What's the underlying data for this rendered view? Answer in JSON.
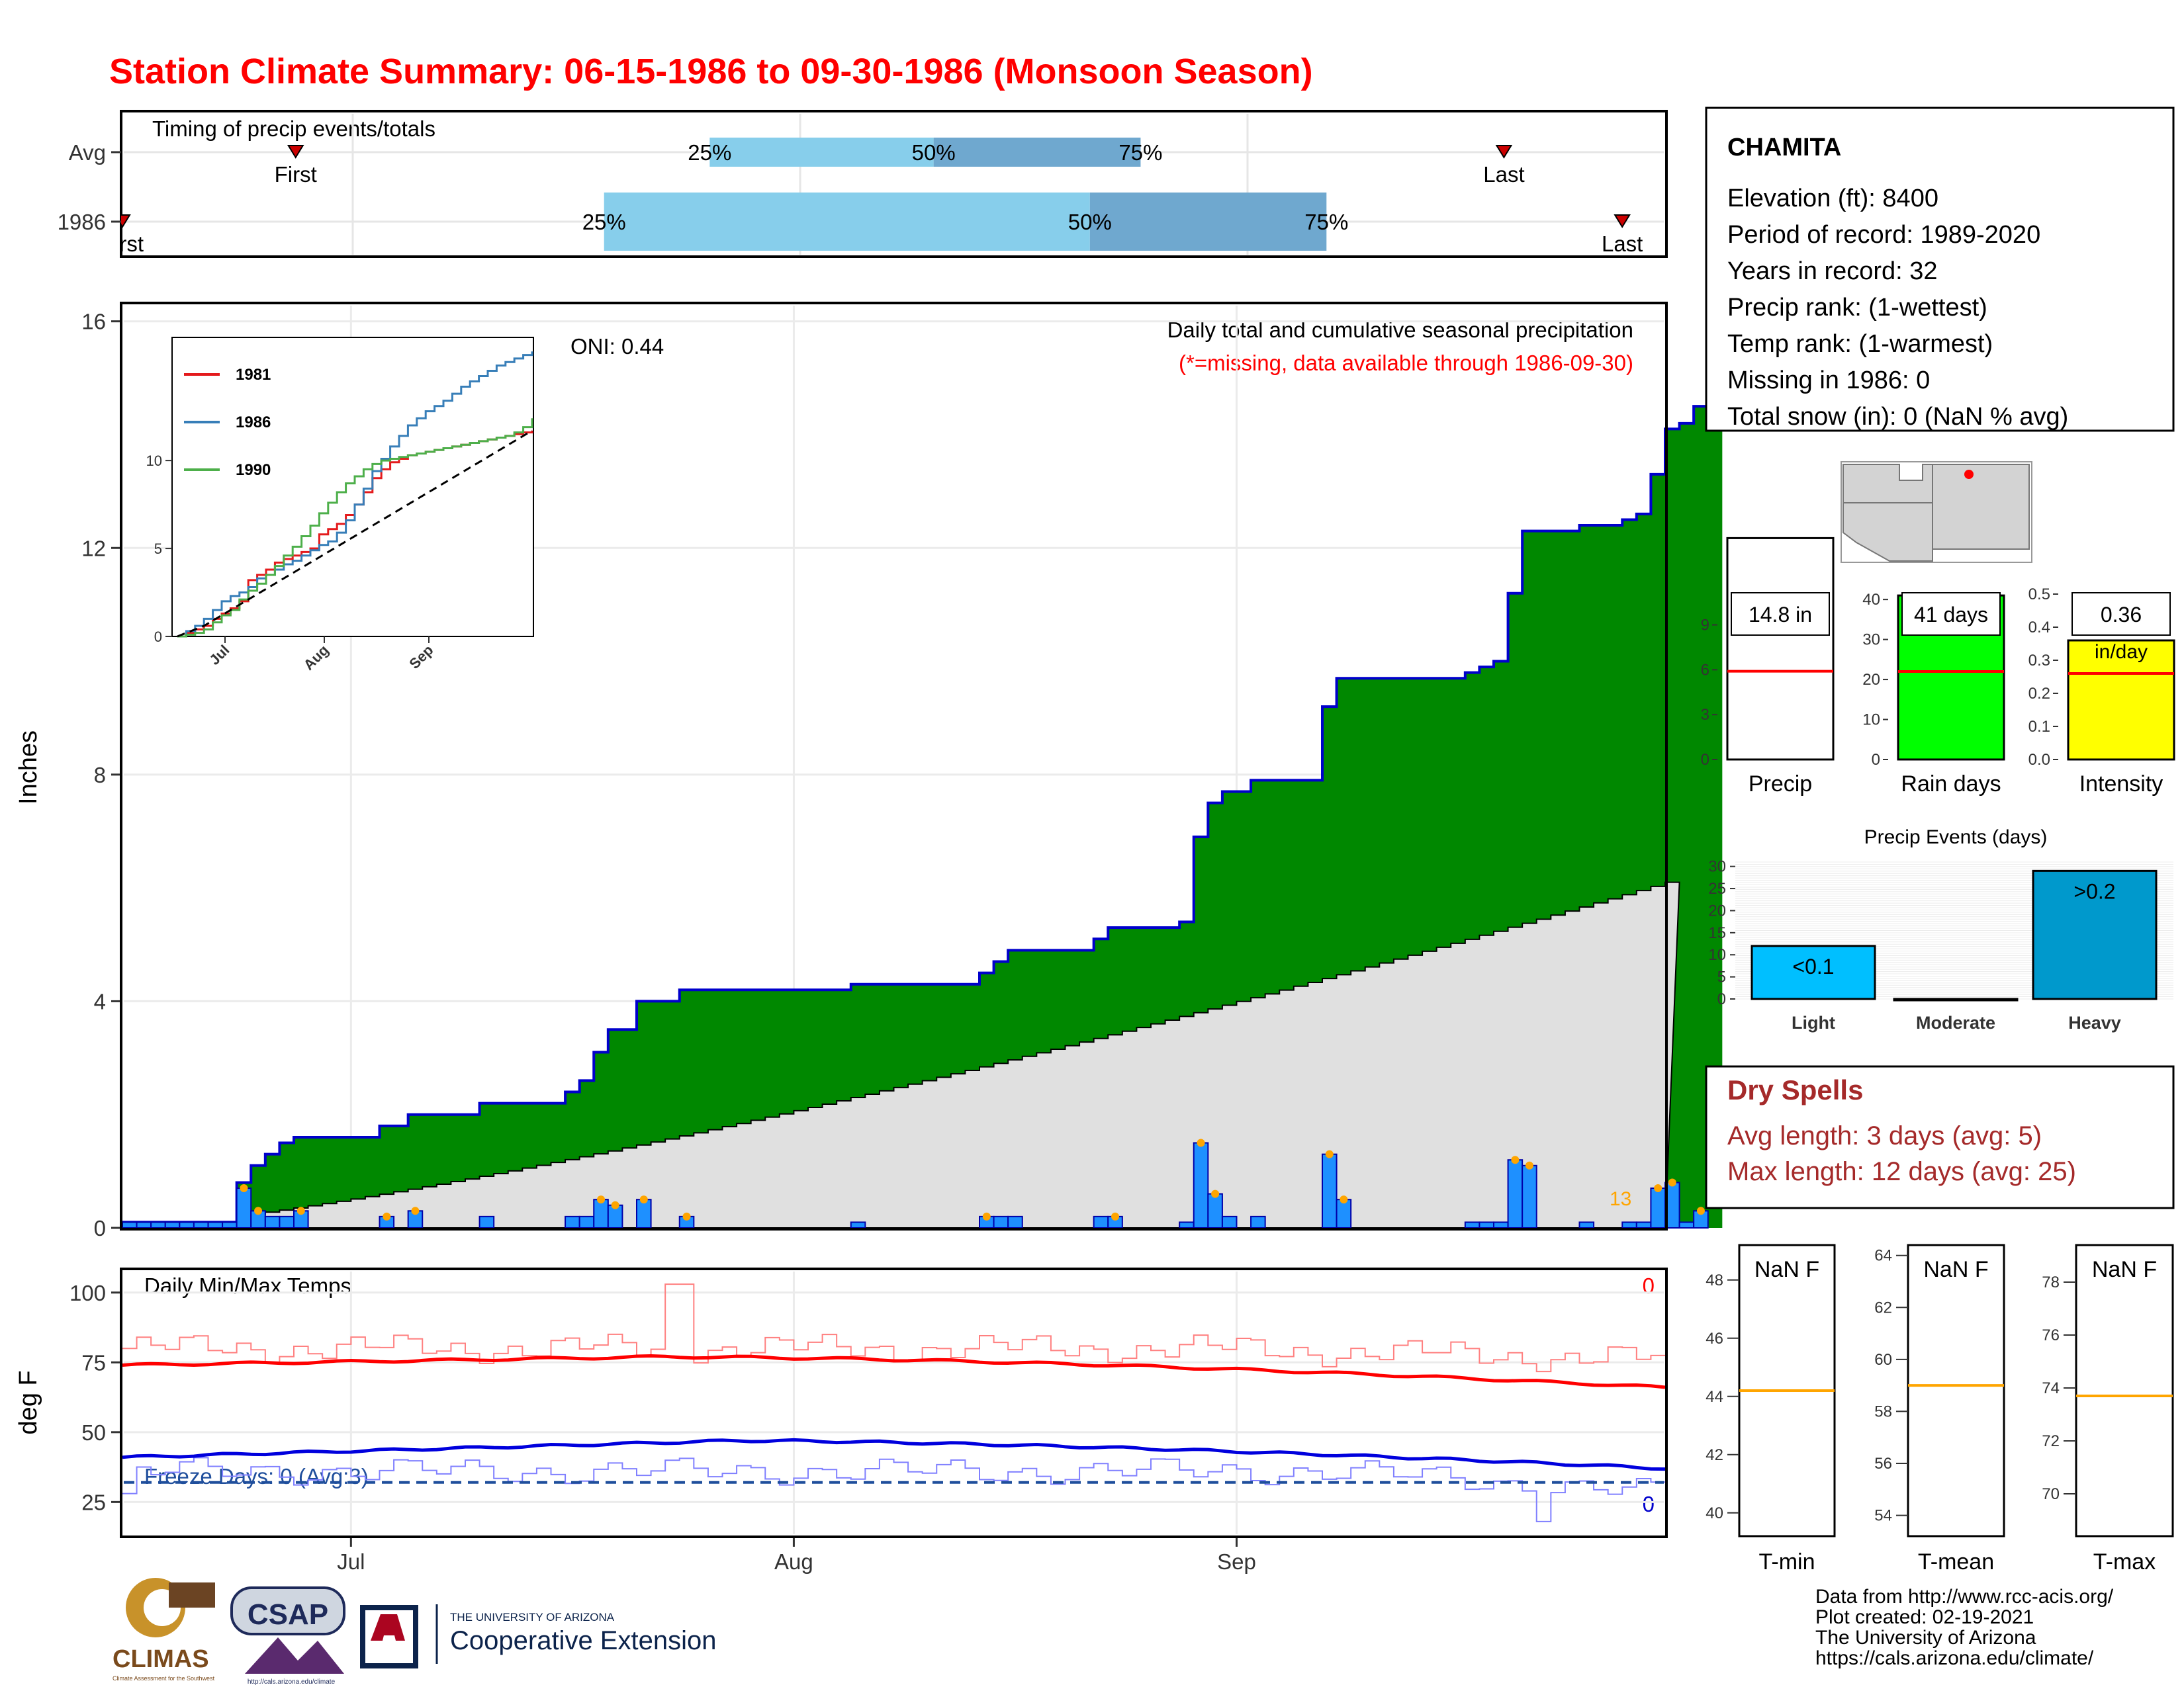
{
  "title": "Station Climate Summary: 06-15-1986 to 09-30-1986 (Monsoon Season)",
  "colors": {
    "title": "#ff0000",
    "cumulative_fill": "#008800",
    "cumulative_line": "#0000cc",
    "avg_fill": "#e0e0e0",
    "daily_bar": "#1e90ff",
    "light_blue": "#87ceeb",
    "mid_blue": "#6fa8cf",
    "dry_spell_text": "#a52a2a",
    "tmax": "#ff0000",
    "tmin": "#0000dd",
    "avg_line": "#ffa500"
  },
  "timing": {
    "label": "Timing of precip events/totals",
    "rows": [
      {
        "name": "Avg",
        "first_label": "First",
        "first_doy": 41,
        "last_label": "Last",
        "last_doy": 327,
        "p25_label": "25%",
        "p25": 139,
        "p50_label": "50%",
        "p50": 192,
        "p75_label": "75%",
        "p75": 241
      },
      {
        "name": "1986",
        "first_label": "First",
        "first_doy": 0,
        "last_label": "Last",
        "last_doy": 355,
        "p25_label": "25%",
        "p25": 114,
        "p50_label": "50%",
        "p50": 229,
        "p75_label": "75%",
        "p75": 285
      }
    ]
  },
  "precip_panel": {
    "ylabel": "Inches",
    "yticks": [
      0,
      4,
      8,
      12,
      16
    ],
    "note1": "Daily total and cumulative seasonal precipitation",
    "note2": "(*=missing, data available through 1986-09-30)",
    "oni": "ONI: 0.44",
    "last_day_label": "13"
  },
  "inset": {
    "yticks": [
      0,
      5,
      10
    ],
    "xticks": [
      "Jul",
      "Aug",
      "Sep"
    ],
    "legend": [
      {
        "name": "1981",
        "color": "#e41a1c"
      },
      {
        "name": "1986",
        "color": "#377eb8"
      },
      {
        "name": "1990",
        "color": "#4daf4a"
      }
    ]
  },
  "temp_panel": {
    "ylabel": "deg F",
    "yticks": [
      25,
      50,
      75,
      100
    ],
    "label": "Daily Min/Max Temps",
    "freeze": "Freeze Days: 0 (Avg:3)",
    "freeze_line": 32,
    "tmax_count": "0",
    "tmin_count": "0"
  },
  "xaxis": {
    "ticks": [
      {
        "label": "Jul",
        "day": 16
      },
      {
        "label": "Aug",
        "day": 47
      },
      {
        "label": "Sep",
        "day": 78
      }
    ],
    "days": 108
  },
  "station": {
    "name": "CHAMITA",
    "lines": [
      "Elevation (ft): 8400",
      "Period of record: 1989-2020",
      "Years in record: 32",
      "Precip rank:  (1-wettest)",
      "Temp rank:  (1-warmest)",
      "Missing in 1986: 0",
      "Total snow (in): 0 (NaN % avg)"
    ]
  },
  "mini_bars": [
    {
      "name": "Precip",
      "value": 14.8,
      "avg": 5.9,
      "ymax": 11.5,
      "yticks": [
        0,
        3,
        6,
        9
      ],
      "box_label": "14.8 in",
      "sub_label": "",
      "fill": "#ffffff"
    },
    {
      "name": "Rain days",
      "value": 41,
      "avg": 22,
      "ymax": 43,
      "yticks": [
        0,
        10,
        20,
        30,
        40
      ],
      "box_label": "41 days",
      "sub_label": "",
      "fill": "#00ff00"
    },
    {
      "name": "Intensity",
      "value": 0.36,
      "avg": 0.26,
      "ymax": 0.52,
      "yticks": [
        "0.0",
        "0.1",
        "0.2",
        "0.3",
        "0.4",
        "0.5"
      ],
      "box_label": "0.36",
      "sub_label": "in/day",
      "fill": "#ffff00"
    }
  ],
  "precip_events": {
    "title": "Precip Events (days)",
    "yticks": [
      0,
      5,
      10,
      15,
      20,
      25,
      30
    ],
    "categories": [
      "Light",
      "Moderate",
      "Heavy"
    ],
    "values": [
      12,
      0,
      29
    ],
    "labels": [
      "<0.1",
      "",
      ">0.2"
    ],
    "fills": [
      "#00bfff",
      "#1e90ff",
      "#0099cc"
    ]
  },
  "dry_spells": {
    "title": "Dry Spells",
    "avg": "Avg length: 3 days (avg: 5)",
    "max": "Max length: 12 days (avg: 25)"
  },
  "temp_boxes": [
    {
      "name": "T-min",
      "label": "NaN F",
      "yticks": [
        40,
        42,
        44,
        46,
        48
      ],
      "ymin": 39.2,
      "ymax": 49.2,
      "avg": 44.2
    },
    {
      "name": "T-mean",
      "label": "NaN F",
      "yticks": [
        54,
        56,
        58,
        60,
        62,
        64
      ],
      "ymin": 53.2,
      "ymax": 64.4,
      "avg": 59.0
    },
    {
      "name": "T-max",
      "label": "NaN F",
      "yticks": [
        70,
        72,
        74,
        76,
        78
      ],
      "ymin": 68.4,
      "ymax": 79.4,
      "avg": 73.7
    }
  ],
  "footer": {
    "lines": [
      "Data from http://www.rcc-acis.org/",
      "Plot created: 02-19-2021",
      "The University of Arizona",
      "https://cals.arizona.edu/climate/"
    ],
    "logo1": "CLIMAS",
    "logo1_sub": "Climate Assessment for the Southwest",
    "logo2": "CSAP",
    "logo2_sub": "http://cals.arizona.edu/climate",
    "logo3_top": "THE UNIVERSITY OF ARIZONA",
    "logo3_bottom": "Cooperative Extension"
  },
  "chart_data": {
    "type": "area",
    "title": "Station Climate Summary: 06-15-1986 to 09-30-1986 (Monsoon Season)",
    "xlabel": "",
    "ylabel": "Inches",
    "ylim": [
      0,
      16.3
    ],
    "x_start": "06-15-1986",
    "x_end": "09-30-1986",
    "daily_precip": [
      0.1,
      0.1,
      0.1,
      0.1,
      0.1,
      0.1,
      0.1,
      0.1,
      0.7,
      0.3,
      0.2,
      0.2,
      0.3,
      0,
      0,
      0,
      0,
      0,
      0.2,
      0,
      0.3,
      0,
      0,
      0,
      0,
      0.2,
      0,
      0,
      0,
      0,
      0,
      0.2,
      0.2,
      0.5,
      0.4,
      0,
      0.5,
      0,
      0,
      0.2,
      0,
      0,
      0,
      0,
      0,
      0,
      0,
      0,
      0,
      0,
      0,
      0.1,
      0,
      0,
      0,
      0,
      0,
      0,
      0,
      0,
      0.2,
      0.2,
      0.2,
      0,
      0,
      0,
      0,
      0,
      0.2,
      0.2,
      0,
      0,
      0,
      0,
      0.1,
      1.5,
      0.6,
      0.2,
      0,
      0.2,
      0,
      0,
      0,
      0,
      1.3,
      0.5,
      0,
      0,
      0,
      0,
      0,
      0,
      0,
      0,
      0.1,
      0.1,
      0.1,
      1.2,
      1.1,
      0,
      0,
      0,
      0.1,
      0,
      0,
      0.1,
      0.1,
      0.7,
      0.8,
      0.1,
      0.3
    ],
    "cumulative": [
      0.1,
      0.1,
      0.1,
      0.1,
      0.1,
      0.1,
      0.1,
      0.1,
      0.8,
      1.1,
      1.3,
      1.5,
      1.6,
      1.6,
      1.6,
      1.6,
      1.6,
      1.6,
      1.8,
      1.8,
      2.0,
      2.0,
      2.0,
      2.0,
      2.0,
      2.2,
      2.2,
      2.2,
      2.2,
      2.2,
      2.2,
      2.4,
      2.6,
      3.1,
      3.5,
      3.5,
      4.0,
      4.0,
      4.0,
      4.2,
      4.2,
      4.2,
      4.2,
      4.2,
      4.2,
      4.2,
      4.2,
      4.2,
      4.2,
      4.2,
      4.2,
      4.3,
      4.3,
      4.3,
      4.3,
      4.3,
      4.3,
      4.3,
      4.3,
      4.3,
      4.5,
      4.7,
      4.9,
      4.9,
      4.9,
      4.9,
      4.9,
      4.9,
      5.1,
      5.3,
      5.3,
      5.3,
      5.3,
      5.3,
      5.4,
      6.9,
      7.5,
      7.7,
      7.7,
      7.9,
      7.9,
      7.9,
      7.9,
      7.9,
      9.2,
      9.7,
      9.7,
      9.7,
      9.7,
      9.7,
      9.7,
      9.7,
      9.7,
      9.7,
      9.8,
      9.9,
      10.0,
      11.2,
      12.3,
      12.3,
      12.3,
      12.3,
      12.4,
      12.4,
      12.4,
      12.5,
      12.6,
      13.3,
      14.1,
      14.2,
      14.5,
      14.8
    ],
    "avg_cumulative_end": 6.1,
    "inset_series": [
      {
        "name": "1981",
        "values": [
          0,
          0.2,
          0.4,
          0.6,
          1.0,
          1.3,
          1.6,
          2.0,
          3.2,
          3.5,
          3.8,
          4.2,
          4.4,
          4.6,
          4.8,
          5.0,
          5.8,
          6.1,
          6.4,
          6.9,
          7.5,
          8.2,
          9.0,
          9.5,
          9.9,
          10.1,
          10.3,
          10.4,
          10.5,
          10.6,
          10.7,
          10.8,
          10.9,
          11.0,
          11.1,
          11.2,
          11.3,
          11.4,
          11.5,
          11.6,
          11.7
        ]
      },
      {
        "name": "1986",
        "values": [
          0,
          0.3,
          0.6,
          1.0,
          1.5,
          2.0,
          2.3,
          2.5,
          2.8,
          3.3,
          3.5,
          3.8,
          4.1,
          4.3,
          4.6,
          4.9,
          5.2,
          5.4,
          5.9,
          6.6,
          7.5,
          8.4,
          9.4,
          10.1,
          10.8,
          11.4,
          12.0,
          12.4,
          12.8,
          13.1,
          13.4,
          13.8,
          14.2,
          14.5,
          14.8,
          15.1,
          15.4,
          15.6,
          15.8,
          16.0,
          16.2
        ]
      },
      {
        "name": "1990",
        "values": [
          0,
          0.1,
          0.2,
          0.4,
          0.8,
          1.2,
          1.5,
          2.1,
          2.6,
          3.0,
          3.5,
          4.0,
          4.6,
          5.1,
          5.7,
          6.3,
          7.0,
          7.6,
          8.2,
          8.7,
          9.1,
          9.5,
          9.8,
          10.0,
          10.1,
          10.2,
          10.3,
          10.4,
          10.5,
          10.6,
          10.7,
          10.8,
          10.9,
          11.0,
          11.1,
          11.2,
          11.3,
          11.4,
          11.6,
          11.9,
          12.4
        ]
      },
      {
        "name": "average",
        "values": [
          0,
          0.2,
          0.4,
          0.6,
          0.9,
          1.2,
          1.5,
          1.8,
          2.1,
          2.4,
          2.7,
          3.0,
          3.3,
          3.6,
          3.9,
          4.2,
          4.5,
          4.8,
          5.1,
          5.4,
          5.7,
          6.0,
          6.3,
          6.6,
          6.9,
          7.2,
          7.5,
          7.8,
          8.1,
          8.4,
          8.7,
          9.0,
          9.3,
          9.6,
          9.9,
          10.2,
          10.5,
          10.8,
          11.1,
          11.4,
          11.7
        ]
      }
    ],
    "temps": {
      "ylim": [
        13,
        108
      ],
      "tmax_avg_start": 74,
      "tmax_avg_mid": 77,
      "tmax_avg_end": 66,
      "tmin_avg_start": 41,
      "tmin_avg_mid": 47,
      "tmin_avg_end": 37,
      "tmax_series_level": 80,
      "tmin_series_level": 36
    }
  }
}
